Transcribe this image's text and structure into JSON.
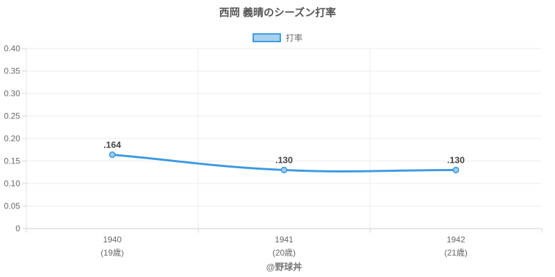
{
  "footer": "@野球丼",
  "colors": {
    "line": "#3B99E0",
    "point_fill": "#9CCAED",
    "legend_fill": "#A8D2F0",
    "grid": "#ECECEC",
    "axis_line": "#CFCFCF",
    "left_border": "#E3E3E3",
    "tick_mark": "#D4D4D4",
    "tick_text": "#666666",
    "point_label_text": "#444444",
    "title_text": "#555555"
  },
  "chart_data": {
    "type": "line",
    "title": "西岡 義晴のシーズン打率",
    "legend_position": "top",
    "grid": true,
    "categories": [
      "1940",
      "1941",
      "1942"
    ],
    "category_sublabels": [
      "(19歳)",
      "(20歳)",
      "(21歳)"
    ],
    "series": [
      {
        "name": "打率",
        "values": [
          0.164,
          0.13,
          0.13
        ],
        "point_labels": [
          ".164",
          ".130",
          ".130"
        ]
      }
    ],
    "ylim": [
      0,
      0.4
    ],
    "y_ticks": [
      {
        "value": 0.4,
        "label": "0.40"
      },
      {
        "value": 0.35,
        "label": "0.35"
      },
      {
        "value": 0.3,
        "label": "0.30"
      },
      {
        "value": 0.25,
        "label": "0.25"
      },
      {
        "value": 0.2,
        "label": "0.20"
      },
      {
        "value": 0.15,
        "label": "0.15"
      },
      {
        "value": 0.1,
        "label": "0.10"
      },
      {
        "value": 0.05,
        "label": "0.05"
      },
      {
        "value": 0,
        "label": "0"
      }
    ]
  }
}
